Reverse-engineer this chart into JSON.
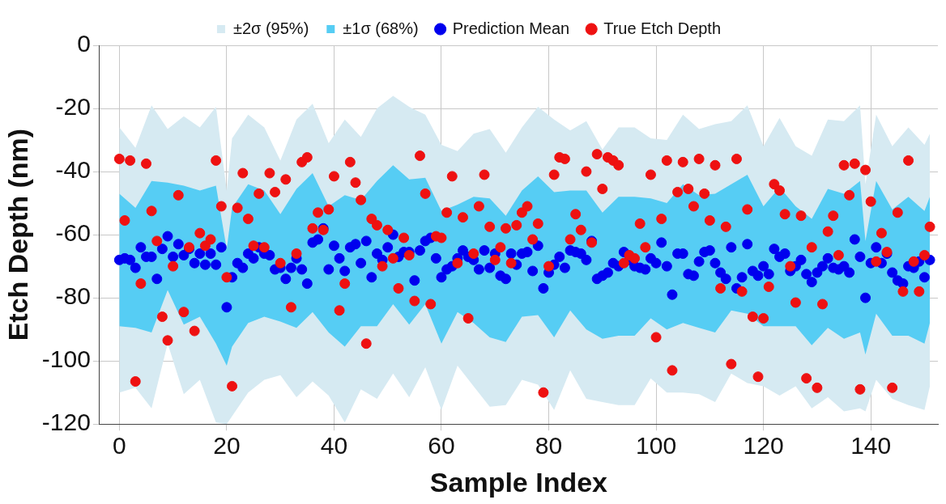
{
  "chart_data": {
    "type": "scatter",
    "xlabel": "Sample Index",
    "ylabel": "Etch Depth (nm)",
    "xlim": [
      -3.7,
      152.5
    ],
    "xticks": [
      0,
      20,
      40,
      60,
      80,
      100,
      120,
      140
    ],
    "ylim": [
      -120,
      0
    ],
    "yticks": [
      -120,
      -100,
      -80,
      -60,
      -40,
      -20,
      0
    ],
    "grid": true,
    "legend": "top",
    "x": [
      0,
      1,
      2,
      3,
      4,
      5,
      6,
      7,
      8,
      9,
      10,
      11,
      12,
      13,
      14,
      15,
      16,
      17,
      18,
      19,
      20,
      21,
      22,
      23,
      24,
      25,
      26,
      27,
      28,
      29,
      30,
      31,
      32,
      33,
      34,
      35,
      36,
      37,
      38,
      39,
      40,
      41,
      42,
      43,
      44,
      45,
      46,
      47,
      48,
      49,
      50,
      51,
      52,
      53,
      54,
      55,
      56,
      57,
      58,
      59,
      60,
      61,
      62,
      63,
      64,
      65,
      66,
      67,
      68,
      69,
      70,
      71,
      72,
      73,
      74,
      75,
      76,
      77,
      78,
      79,
      80,
      81,
      82,
      83,
      84,
      85,
      86,
      87,
      88,
      89,
      90,
      91,
      92,
      93,
      94,
      95,
      96,
      97,
      98,
      99,
      100,
      101,
      102,
      103,
      104,
      105,
      106,
      107,
      108,
      109,
      110,
      111,
      112,
      113,
      114,
      115,
      116,
      117,
      118,
      119,
      120,
      121,
      122,
      123,
      124,
      125,
      126,
      127,
      128,
      129,
      130,
      131,
      132,
      133,
      134,
      135,
      136,
      137,
      138,
      139,
      140,
      141,
      142,
      143,
      144,
      145,
      146,
      147,
      148,
      149,
      150,
      151
    ],
    "series": [
      {
        "name": "±2σ (95%)",
        "type": "line",
        "color": "#d6eaf2",
        "x": [
          0,
          3,
          6,
          9,
          12,
          15,
          18,
          20,
          21,
          24,
          27,
          30,
          33,
          36,
          39,
          42,
          45,
          48,
          51,
          54,
          57,
          60,
          63,
          66,
          69,
          72,
          75,
          78,
          81,
          84,
          87,
          90,
          93,
          96,
          99,
          102,
          105,
          108,
          111,
          114,
          117,
          120,
          123,
          126,
          129,
          132,
          135,
          138,
          139,
          141,
          144,
          147,
          150,
          151
        ],
        "values": [
          null,
          null,
          null,
          null,
          null,
          null,
          null,
          null,
          null,
          null,
          null,
          null,
          null,
          null,
          null,
          null,
          null,
          null,
          null,
          null,
          null,
          null,
          null,
          null,
          null,
          null,
          null,
          null,
          null,
          null,
          null,
          null,
          null,
          null,
          null,
          null,
          null,
          null,
          null,
          null,
          null,
          null,
          null,
          null,
          null,
          null,
          null,
          null,
          null,
          null,
          null,
          null,
          null,
          null
        ],
        "upper": [
          -26,
          -32.5,
          -19,
          -26.5,
          -22.5,
          -26,
          -19.5,
          -46,
          -29.5,
          -22,
          -26,
          -36.5,
          -23.5,
          -18.5,
          -31,
          -23.5,
          -29,
          -20,
          -16,
          -19.5,
          -22,
          -31.5,
          -33.5,
          -28,
          -26.5,
          -34,
          -26,
          -19.5,
          -23.5,
          -27,
          -24,
          -33,
          -26,
          -26,
          -29.5,
          -30,
          -22,
          -26.5,
          -25,
          -24,
          -19,
          -32,
          -23,
          -32,
          -35,
          -23.5,
          -24,
          -19,
          -44,
          -22,
          -32,
          -26,
          -31.5,
          -28
        ],
        "lower": [
          -110,
          -108.5,
          -115,
          -94.5,
          -110.5,
          -106,
          -119.5,
          -120,
          -117.5,
          -110,
          -106,
          -104.5,
          -111.5,
          -106.5,
          -111,
          -119.5,
          -109,
          -112,
          -104,
          -111.5,
          -102,
          -115.5,
          -101.5,
          -108,
          -114.5,
          -114,
          -106,
          -107.5,
          -115.5,
          -103,
          -112,
          -113,
          -114,
          -114,
          -105.5,
          -110,
          -110,
          -110.5,
          -113,
          -104,
          -107,
          -108,
          -111,
          -108,
          -115,
          -111.5,
          -116,
          -115,
          -116,
          -106,
          -112,
          -114,
          -115.5,
          -108
        ]
      },
      {
        "name": "±1σ (68%)",
        "type": "line",
        "color": "#56cdf4",
        "x": [
          0,
          3,
          6,
          9,
          12,
          15,
          18,
          20,
          21,
          24,
          27,
          30,
          33,
          36,
          39,
          42,
          45,
          48,
          51,
          54,
          57,
          60,
          63,
          66,
          69,
          72,
          75,
          78,
          81,
          84,
          87,
          90,
          93,
          96,
          99,
          102,
          105,
          108,
          111,
          114,
          117,
          120,
          123,
          126,
          129,
          132,
          135,
          138,
          139,
          141,
          144,
          147,
          150,
          151
        ],
        "values": [
          null,
          null,
          null,
          null,
          null,
          null,
          null,
          null,
          null,
          null,
          null,
          null,
          null,
          null,
          null,
          null,
          null,
          null,
          null,
          null,
          null,
          null,
          null,
          null,
          null,
          null,
          null,
          null,
          null,
          null,
          null,
          null,
          null,
          null,
          null,
          null,
          null,
          null,
          null,
          null,
          null,
          null,
          null,
          null,
          null,
          null,
          null,
          null,
          null,
          null,
          null,
          null,
          null,
          null
        ],
        "upper": [
          -47,
          -51.5,
          -43,
          -43.5,
          -44.5,
          -46,
          -44.5,
          -64.5,
          -51.5,
          -44,
          -46,
          -53.5,
          -45.5,
          -40.5,
          -51,
          -47.5,
          -49,
          -43,
          -38,
          -42.5,
          -42,
          -52.5,
          -50.5,
          -48,
          -48.5,
          -54,
          -46,
          -41.5,
          -46.5,
          -46,
          -46,
          -53,
          -48,
          -48,
          -48.5,
          -50,
          -44,
          -47.5,
          -47,
          -44,
          -41,
          -51,
          -45,
          -51,
          -55,
          -45.5,
          -47,
          -43,
          -62,
          -43,
          -52,
          -48,
          -52.5,
          -48
        ],
        "lower": [
          -89,
          -89.5,
          -91,
          -77.5,
          -88.5,
          -86,
          -94.5,
          -101.5,
          -95.5,
          -88,
          -86,
          -87.5,
          -89.5,
          -84.5,
          -91,
          -95.5,
          -89,
          -89,
          -82,
          -88.5,
          -82,
          -94.5,
          -84.5,
          -88,
          -92.5,
          -94,
          -86,
          -85.5,
          -92.5,
          -84,
          -90,
          -93,
          -92,
          -92,
          -86.5,
          -90,
          -88,
          -89.5,
          -91,
          -84,
          -85,
          -89,
          -89,
          -89,
          -95,
          -89.5,
          -93,
          -91,
          -98,
          -85,
          -92,
          -92,
          -94.5,
          -88
        ]
      },
      {
        "name": "Prediction Mean",
        "type": "scatter",
        "marker": "circle",
        "color": "#0000ee",
        "values": [
          -68,
          -67.5,
          -68,
          -70.5,
          -64,
          -67,
          -67,
          -74,
          -64.5,
          -60.5,
          -67,
          -63,
          -66.5,
          -64.5,
          -69,
          -66,
          -69.5,
          -66,
          -69.5,
          -64,
          -83,
          -73.5,
          -69,
          -70.5,
          -66,
          -67.5,
          -64,
          -66,
          -66.5,
          -71,
          -70.5,
          -74,
          -70.5,
          -67.5,
          -71,
          -75.5,
          -62.5,
          -61.5,
          -58,
          -71,
          -63.5,
          -67.5,
          -71.5,
          -64,
          -63,
          -69,
          -62,
          -73.5,
          -66,
          -68,
          -64,
          -60,
          -67,
          -65.5,
          -65.5,
          -74.5,
          -65,
          -62,
          -61,
          -67.5,
          -73.5,
          -71,
          -70,
          -67.5,
          -65,
          -67,
          -68,
          -71,
          -65,
          -70.5,
          -66,
          -73,
          -74,
          -66,
          -69.5,
          -66,
          -65.5,
          -71.5,
          -63.5,
          -77,
          -72,
          -69.5,
          -67,
          -70.5,
          -65,
          -65.5,
          -66,
          -68,
          -62,
          -74,
          -73,
          -72,
          -69,
          -70,
          -65.5,
          -68,
          -70,
          -70.5,
          -71,
          -67.5,
          -69,
          -62.5,
          -70,
          -79,
          -66,
          -66,
          -72.5,
          -73,
          -68.5,
          -65.5,
          -65,
          -69,
          -72,
          -74,
          -64,
          -77,
          -73.5,
          -63,
          -71.5,
          -73,
          -70,
          -72.5,
          -64.5,
          -67,
          -66,
          -71.5,
          -70,
          -68,
          -72.5,
          -75,
          -72,
          -70,
          -67.5,
          -70.5,
          -71,
          -70,
          -72,
          -61.5,
          -67,
          -80,
          -69,
          -64,
          -69,
          -66,
          -72,
          -74.5,
          -75.5,
          -70,
          -70.5,
          -68.5,
          -73.5,
          -68
        ]
      },
      {
        "name": "True Etch Depth",
        "type": "scatter",
        "marker": "circle",
        "color": "#ee1111",
        "values": [
          -36,
          -55.5,
          -36.5,
          -106.5,
          -75.5,
          -37.5,
          -52.5,
          -62,
          -86,
          -93.5,
          -70,
          -47.5,
          -84.5,
          -64,
          -90.5,
          -59.5,
          -63.5,
          -61.5,
          -36.5,
          -51,
          -73.5,
          -108,
          -51.5,
          -40.5,
          -55,
          -63.5,
          -47,
          -64,
          -40.5,
          -46.5,
          -69,
          -42.5,
          -83,
          -66,
          -37,
          -35.5,
          -58,
          -53,
          -58.5,
          -52,
          -41.5,
          -84,
          -75.5,
          -37,
          -43.5,
          -49,
          -94.5,
          -55,
          -57,
          -70,
          -58.5,
          -67.5,
          -77,
          -61,
          -66.5,
          -81,
          -35,
          -47,
          -82,
          -60.5,
          -61,
          -53,
          -41.5,
          -69,
          -54.5,
          -86.5,
          -66,
          -51,
          -41,
          -57.5,
          -68,
          -64,
          -58,
          -69,
          -57,
          -53,
          -51,
          -61.5,
          -56.5,
          -110,
          -70,
          -41,
          -35.5,
          -36,
          -61.5,
          -53.5,
          -58.5,
          -40,
          -62.5,
          -34.5,
          -45.5,
          -35.5,
          -36.5,
          -38,
          -69,
          -66.5,
          -67.5,
          -56.5,
          -64,
          -41,
          -92.5,
          -55,
          -36.5,
          -103,
          -46.5,
          -37,
          -45.5,
          -51,
          -36,
          -47,
          -55.5,
          -38,
          -77,
          -57.5,
          -101,
          -36,
          -78,
          -52,
          -86,
          -105,
          -86.5,
          -76.5,
          -44,
          -46,
          -53.5,
          -70,
          -81.5,
          -54,
          -105.5,
          -64,
          -108.5,
          -82,
          -59,
          -54,
          -66.5,
          -38,
          -47.5,
          -37.5,
          -109,
          -39.5,
          -49.5,
          -68.5,
          -59.5,
          -65.5,
          -108.5,
          -53,
          -78,
          -36.5,
          -68.5,
          -78,
          -66.5,
          -57.5
        ]
      }
    ]
  }
}
